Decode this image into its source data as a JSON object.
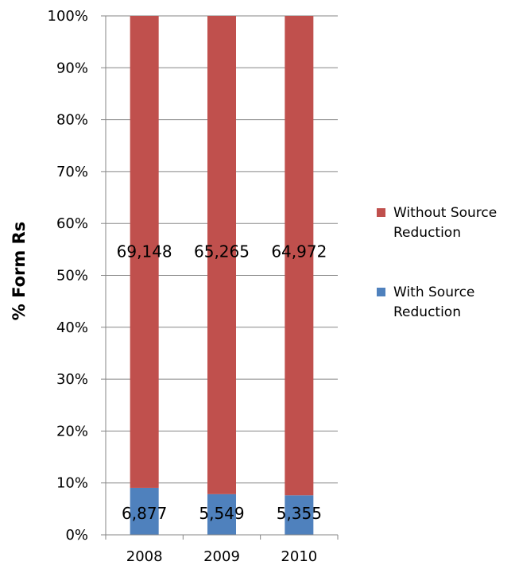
{
  "chart_data": {
    "type": "bar",
    "stacked": "percent",
    "categories": [
      "2008",
      "2009",
      "2010"
    ],
    "series": [
      {
        "name": "With Source Reduction",
        "values": [
          6877,
          5549,
          5355
        ],
        "labels": [
          "6,877",
          "5,549",
          "5,355"
        ],
        "color": "#4F81BD"
      },
      {
        "name": "Without Source Reduction",
        "values": [
          69148,
          65265,
          64972
        ],
        "labels": [
          "69,148",
          "65,265",
          "64,972"
        ],
        "color": "#C0504D"
      }
    ],
    "ylabel": "% Form Rs",
    "xlabel": "",
    "ylim": [
      0,
      100
    ],
    "yticks": [
      "0%",
      "10%",
      "20%",
      "30%",
      "40%",
      "50%",
      "60%",
      "70%",
      "80%",
      "90%",
      "100%"
    ],
    "grid": true,
    "legend": {
      "placement": "right",
      "entries": [
        {
          "lines": [
            "Without Source",
            "Reduction"
          ],
          "color": "#C0504D"
        },
        {
          "lines": [
            "With Source",
            "Reduction"
          ],
          "color": "#4F81BD"
        }
      ]
    }
  }
}
